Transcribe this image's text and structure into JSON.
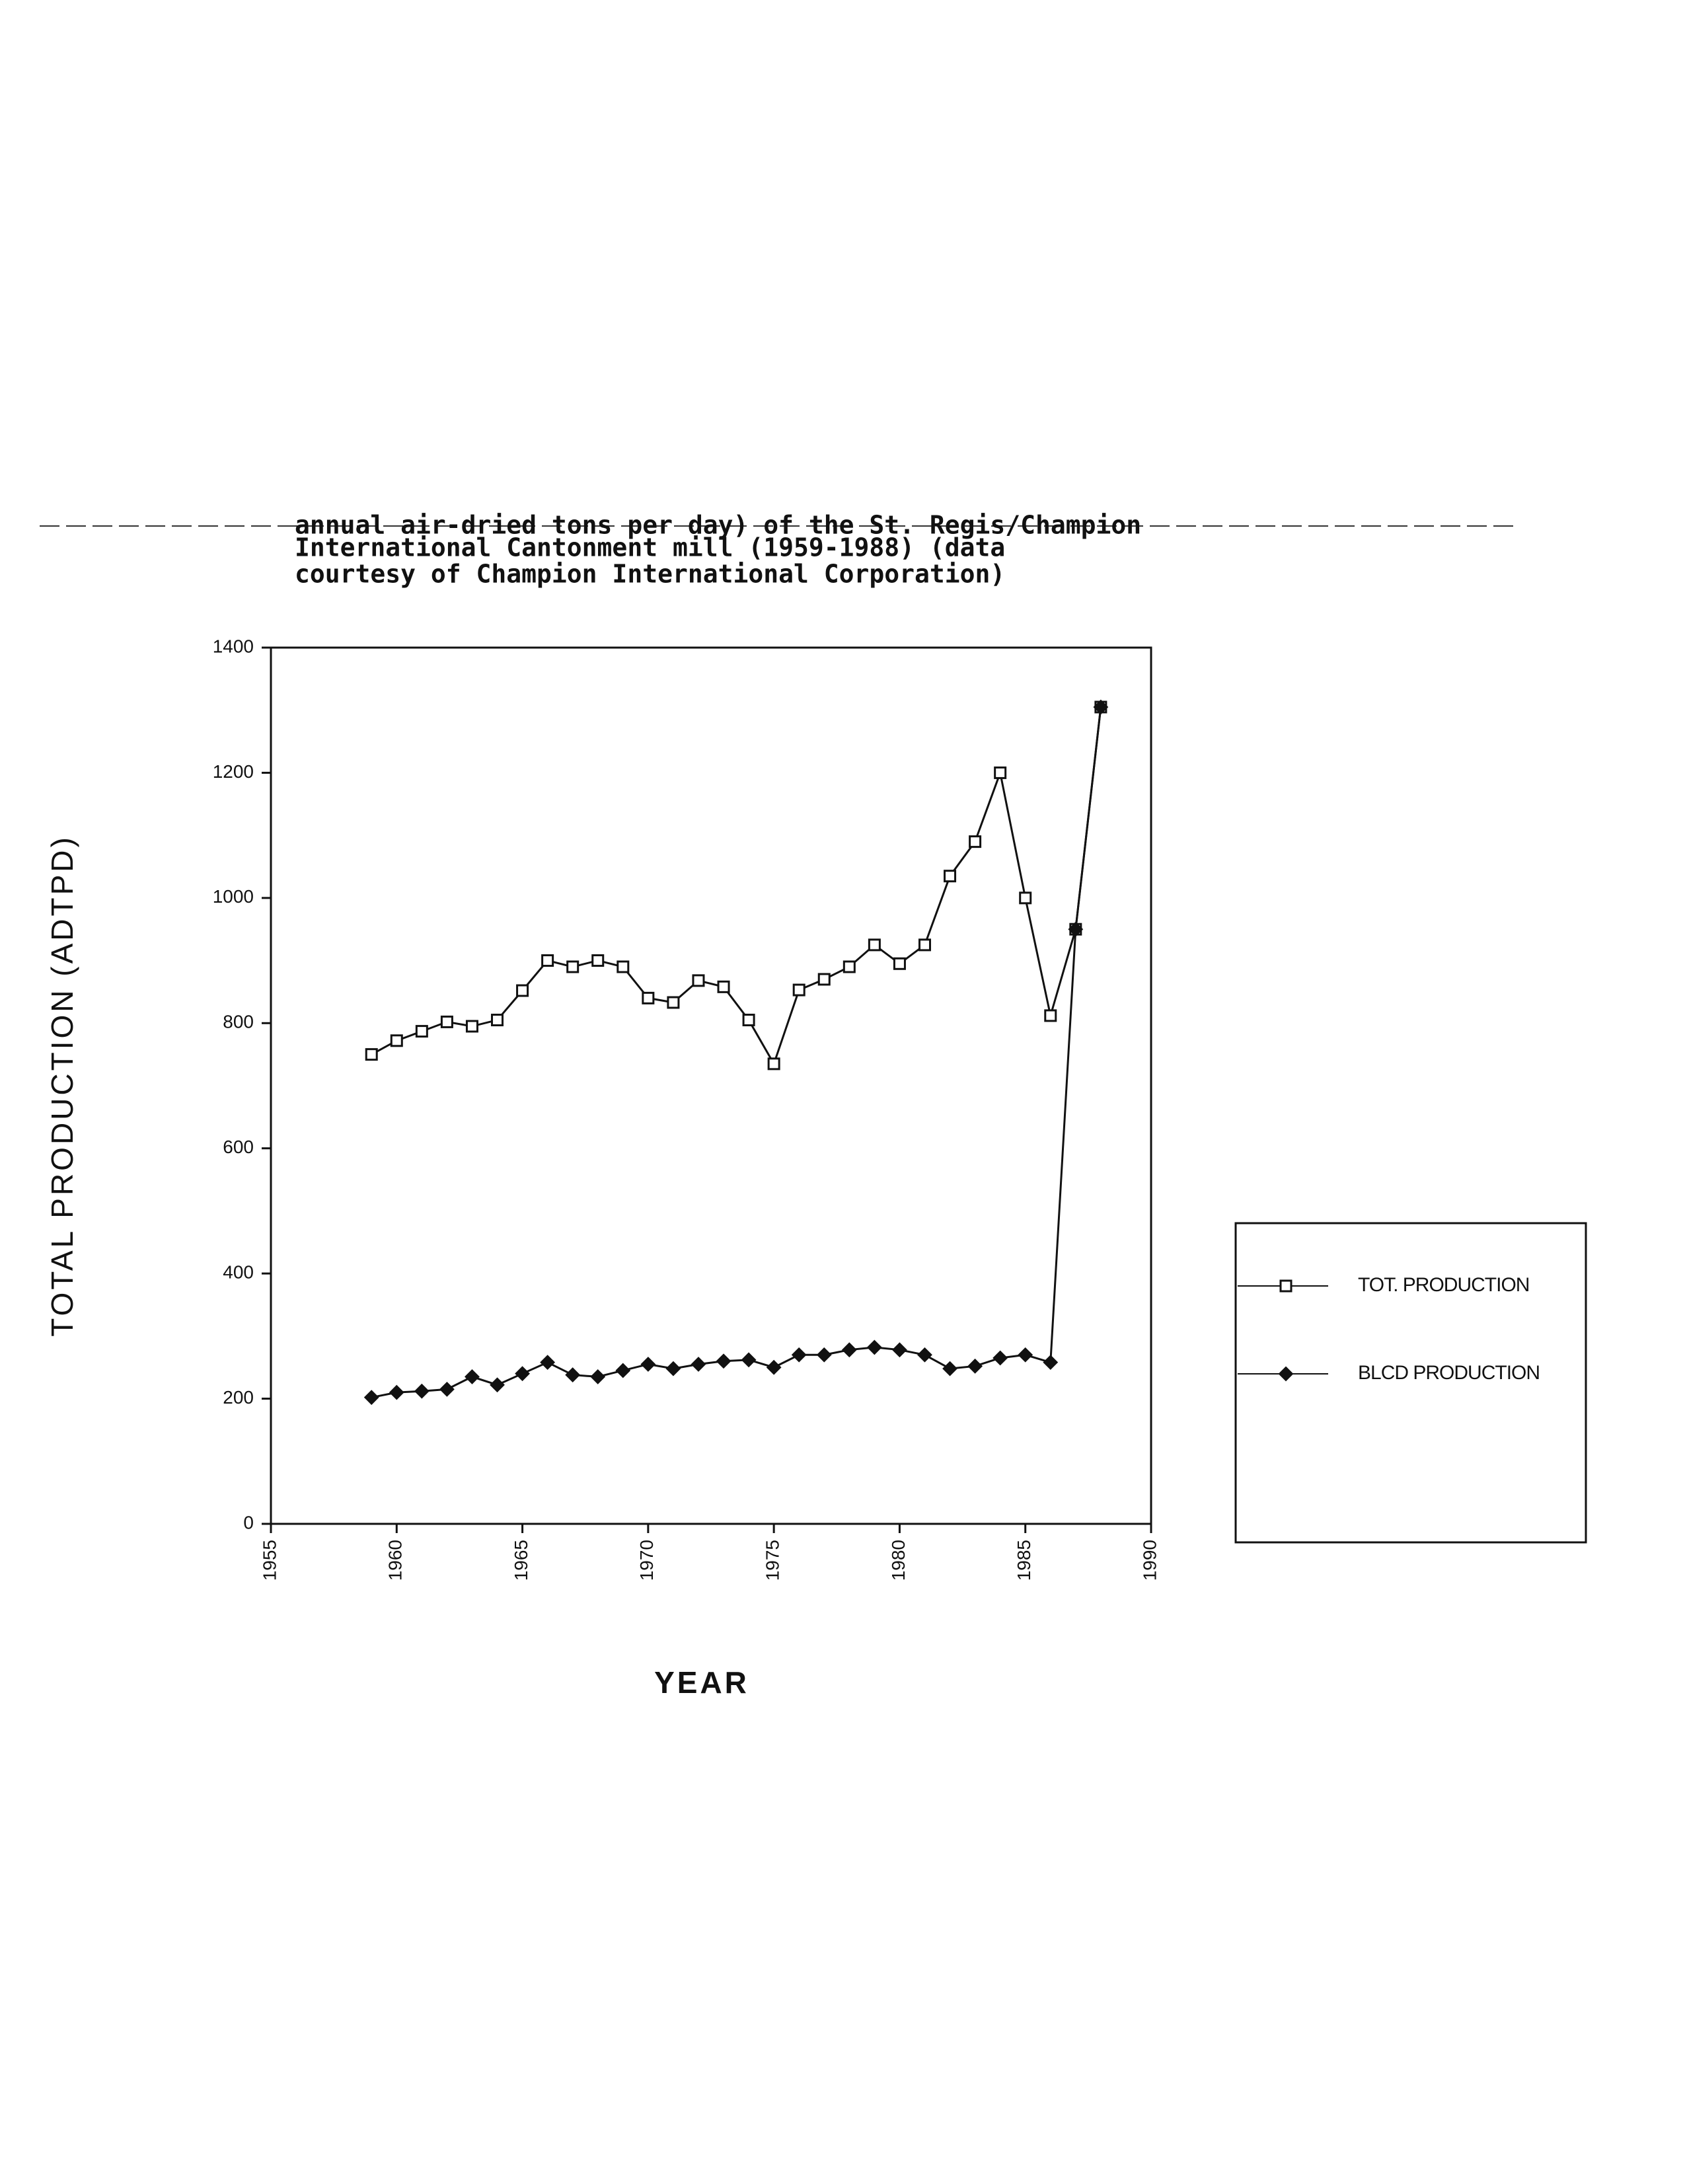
{
  "chart_data": {
    "type": "line",
    "title_lines": [
      "annual air-dried tons per day) of the St. Regis/Champion",
      "International Cantonment mill (1959-1988) (data",
      "courtesy of Champion International Corporation)"
    ],
    "x_label": "YEAR",
    "y_label": "TOTAL PRODUCTION (ADTPD)",
    "x": [
      1959,
      1960,
      1961,
      1962,
      1963,
      1964,
      1965,
      1966,
      1967,
      1968,
      1969,
      1970,
      1971,
      1972,
      1973,
      1974,
      1975,
      1976,
      1977,
      1978,
      1979,
      1980,
      1981,
      1982,
      1983,
      1984,
      1985,
      1986,
      1987,
      1988
    ],
    "series": [
      {
        "name": "TOT. PRODUCTION",
        "color": "#111111",
        "marker": "square",
        "values": [
          750,
          772,
          787,
          802,
          795,
          805,
          852,
          900,
          890,
          900,
          890,
          840,
          833,
          868,
          858,
          805,
          735,
          853,
          870,
          890,
          925,
          895,
          925,
          1035,
          1090,
          1200,
          1000,
          812,
          950,
          1305
        ]
      },
      {
        "name": "BLCD PRODUCTION",
        "color": "#111111",
        "marker": "diamond",
        "values": [
          202,
          210,
          212,
          215,
          235,
          222,
          240,
          258,
          238,
          235,
          245,
          255,
          248,
          255,
          260,
          262,
          250,
          270,
          270,
          278,
          282,
          278,
          270,
          248,
          252,
          265,
          270,
          258,
          950,
          1305
        ]
      }
    ],
    "xlim": [
      1955,
      1990
    ],
    "xticks": [
      1955,
      1960,
      1965,
      1970,
      1975,
      1980,
      1985,
      1990
    ],
    "ylim": [
      0,
      1400
    ],
    "yticks": [
      0,
      200,
      400,
      600,
      800,
      1000,
      1200,
      1400
    ],
    "grid": false,
    "legend": "right"
  }
}
